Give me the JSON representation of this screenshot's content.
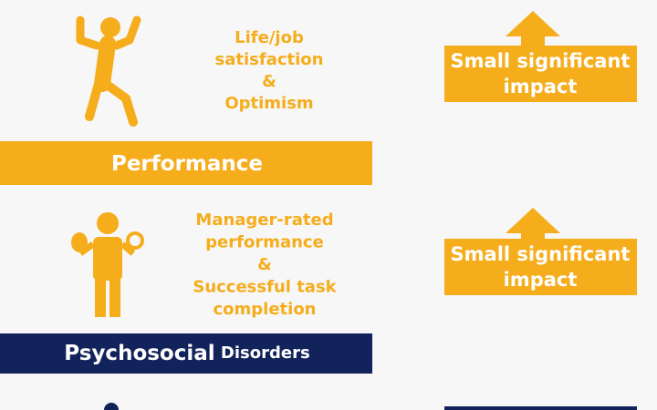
{
  "sections": [
    {
      "outcome_lines": [
        "Life/job",
        "satisfaction",
        "&",
        "Optimism"
      ],
      "impact_lines": [
        "Small significant",
        "impact"
      ]
    },
    {
      "outcome_lines": [
        "Manager-rated",
        "performance",
        "&",
        "Successful task",
        "completion"
      ],
      "impact_lines": [
        "Small significant",
        "impact"
      ]
    }
  ],
  "bars": [
    {
      "words": [
        "Performance"
      ]
    },
    {
      "words": [
        "Psychosocial",
        "Disorders"
      ]
    }
  ]
}
